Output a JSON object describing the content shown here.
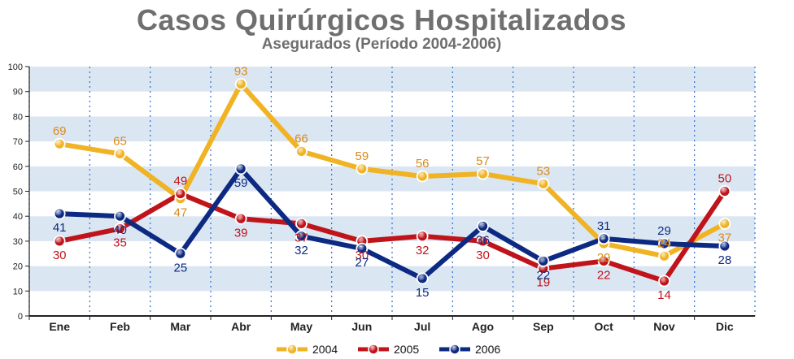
{
  "header": {
    "title": "Casos Quirúrgicos Hospitalizados",
    "subtitle": "Asegurados (Período 2004-2006)"
  },
  "chart_data": {
    "type": "line",
    "title": "Casos Quirúrgicos Hospitalizados",
    "subtitle": "Asegurados (Período 2004-2006)",
    "categories": [
      "Ene",
      "Feb",
      "Mar",
      "Abr",
      "May",
      "Jun",
      "Jul",
      "Ago",
      "Sep",
      "Oct",
      "Nov",
      "Dic"
    ],
    "ylim": [
      0,
      100
    ],
    "yticks": [
      0,
      10,
      20,
      30,
      40,
      50,
      60,
      70,
      80,
      90,
      100
    ],
    "grid": "horizontal bands, vertical dotted lines",
    "legend": "bottom-center",
    "series": [
      {
        "name": "2004",
        "color": "#f0b323",
        "label_color": "#d98a1a",
        "values": [
          69,
          65,
          47,
          93,
          66,
          59,
          56,
          57,
          53,
          29,
          24,
          37
        ]
      },
      {
        "name": "2005",
        "color": "#c0141b",
        "label_color": "#c0141b",
        "values": [
          30,
          35,
          49,
          39,
          37,
          30,
          32,
          30,
          19,
          22,
          14,
          50
        ]
      },
      {
        "name": "2006",
        "color": "#0d2a82",
        "label_color": "#0d2a82",
        "values": [
          41,
          40,
          25,
          59,
          32,
          27,
          15,
          36,
          22,
          31,
          29,
          28
        ]
      }
    ]
  }
}
